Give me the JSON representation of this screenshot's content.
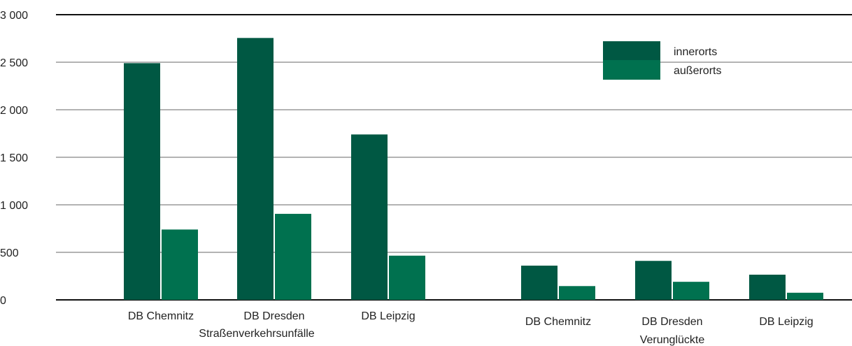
{
  "chart_data": {
    "type": "bar",
    "ylim": [
      0,
      3000
    ],
    "yticks": [
      0,
      500,
      1000,
      1500,
      2000,
      2500,
      3000
    ],
    "ytick_labels": [
      "0",
      "500",
      "1 000",
      "1 500",
      "2 000",
      "2 500",
      "3 000"
    ],
    "grid": true,
    "legend_position": "top-right",
    "groups": [
      {
        "label": "Straßenverkehrsunfälle",
        "categories": [
          "DB Chemnitz",
          "DB Dresden",
          "DB Leipzig"
        ],
        "series": [
          {
            "name": "innerorts",
            "values": [
              2490,
              2755,
              1740
            ]
          },
          {
            "name": "außerorts",
            "values": [
              740,
              905,
              465
            ]
          }
        ]
      },
      {
        "label": "Verunglückte",
        "categories": [
          "DB Chemnitz",
          "DB Dresden",
          "DB Leipzig"
        ],
        "series": [
          {
            "name": "innerorts",
            "values": [
              360,
              410,
              265
            ]
          },
          {
            "name": "außerorts",
            "values": [
              145,
              190,
              75
            ]
          }
        ]
      }
    ],
    "colors": {
      "innerorts": "#005843",
      "außerorts": "#00714f"
    }
  }
}
